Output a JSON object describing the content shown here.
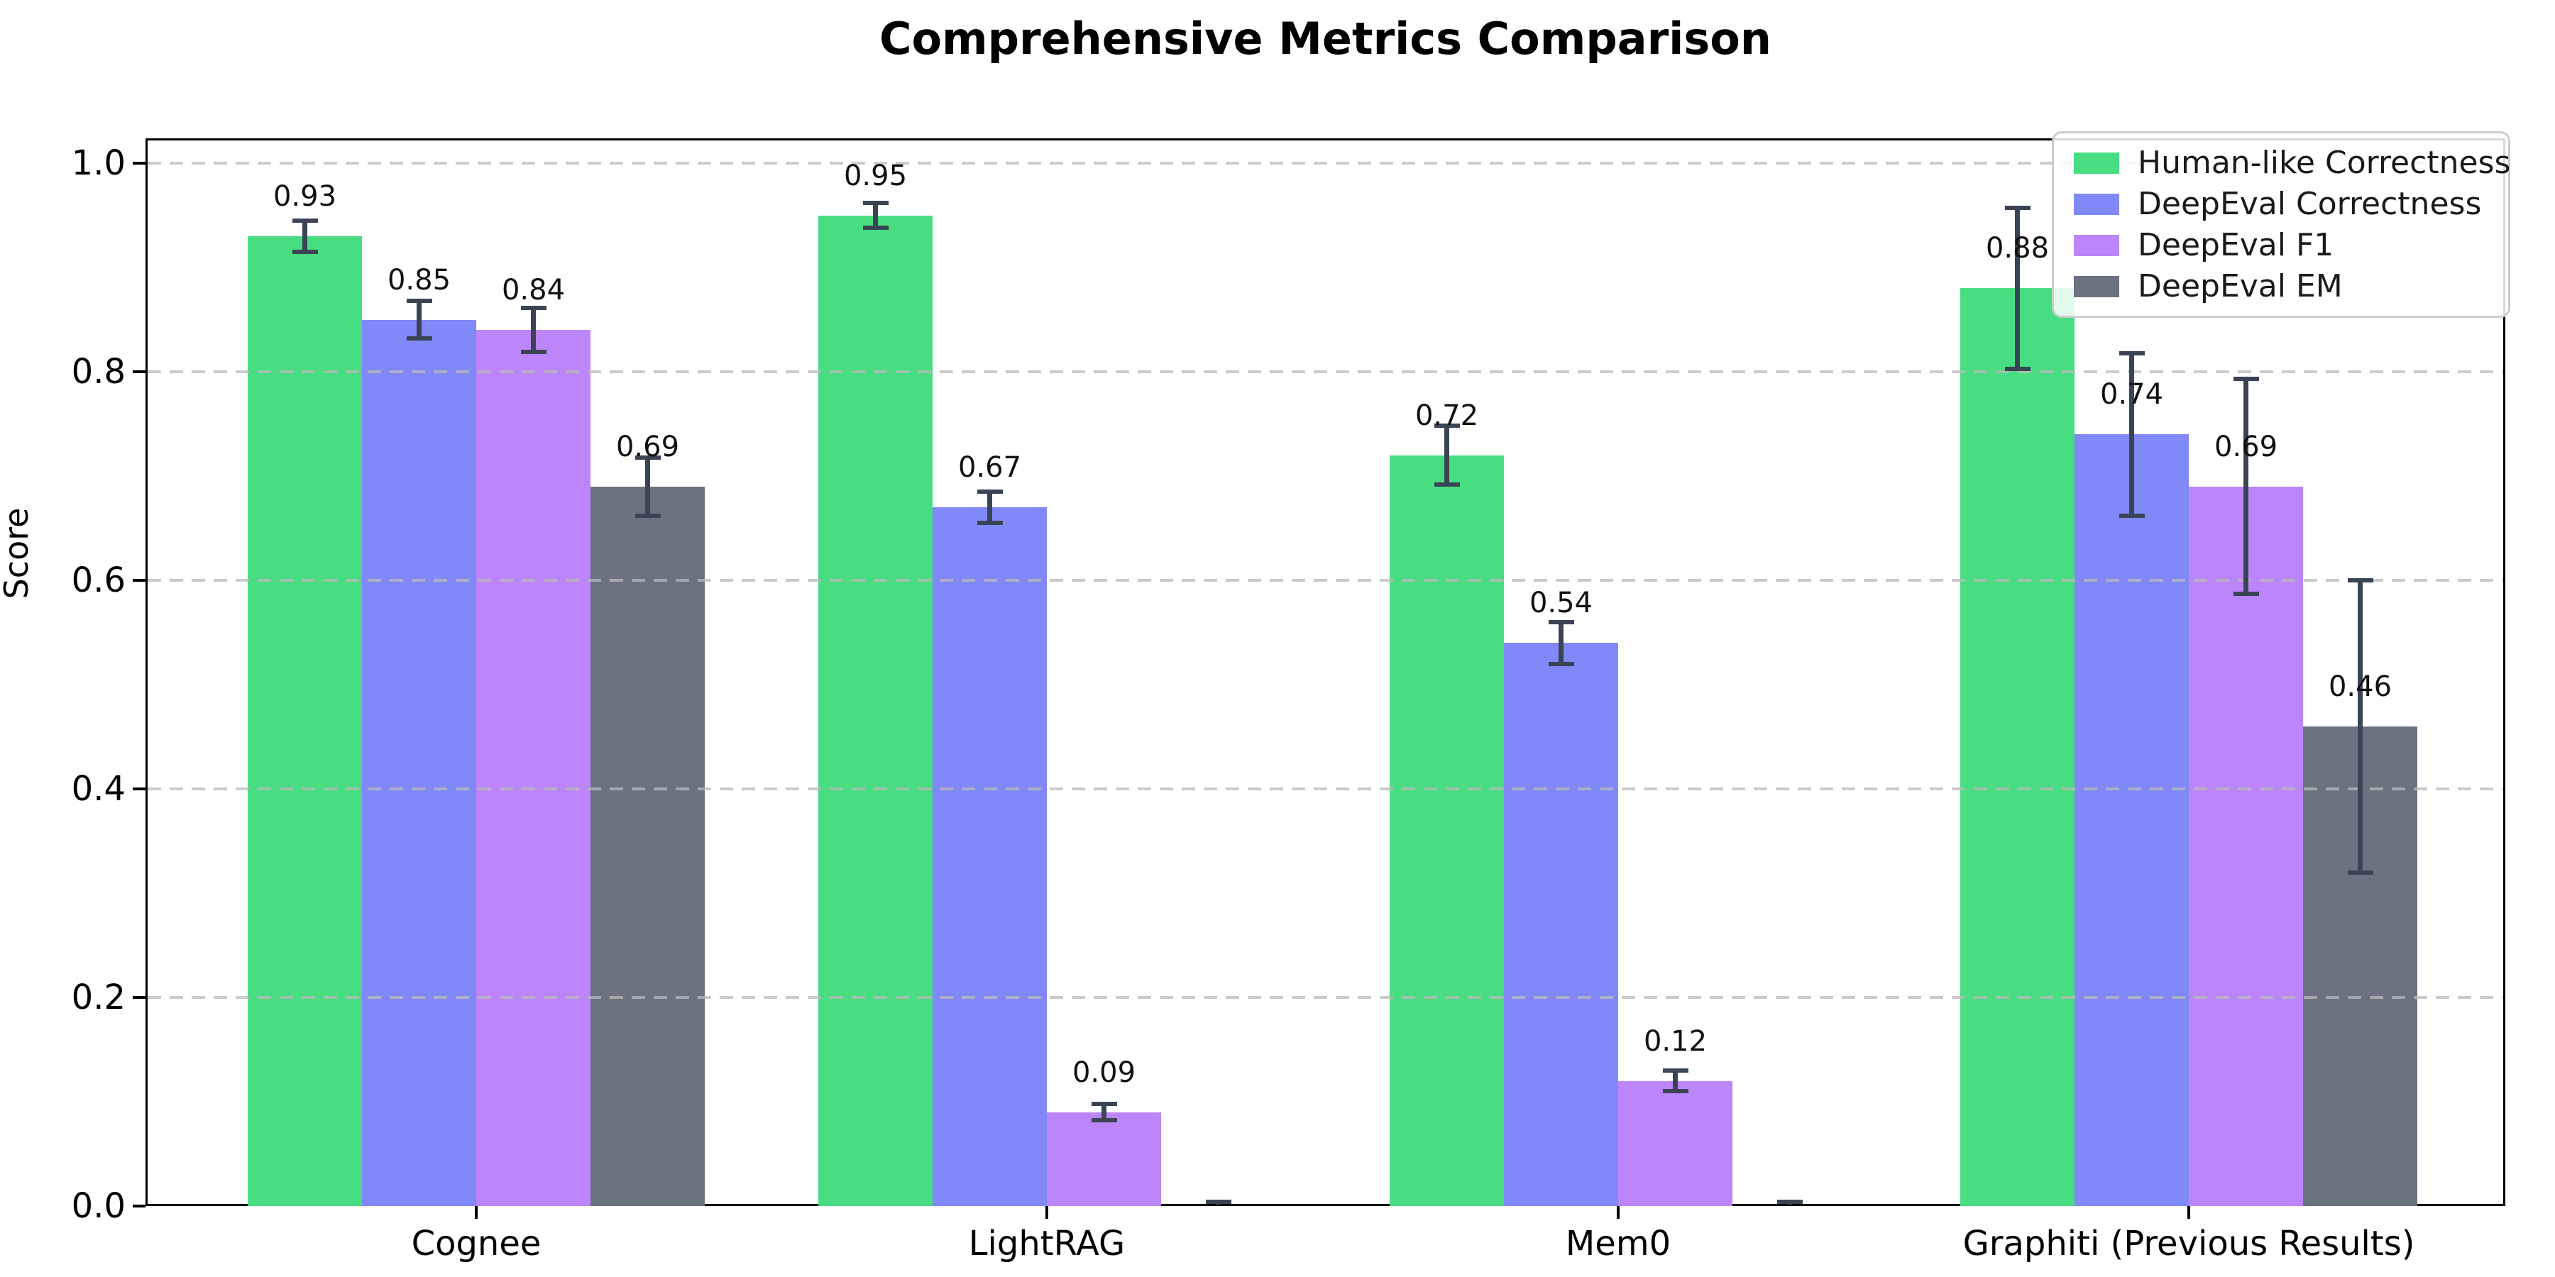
{
  "chart_data": {
    "type": "bar",
    "title": "Comprehensive Metrics Comparison",
    "xlabel": "",
    "ylabel": "Score",
    "categories": [
      "Cognee",
      "LightRAG",
      "Mem0",
      "Graphiti (Previous Results)"
    ],
    "y_ticks": [
      "0.0",
      "0.2",
      "0.4",
      "0.6",
      "0.8",
      "1.0"
    ],
    "ylim": [
      0.0,
      1.024
    ],
    "grid": {
      "axis": "y",
      "style": "dashed",
      "color": "#bababa",
      "values": [
        0.2,
        0.4,
        0.6,
        0.8,
        1.0
      ]
    },
    "legend": {
      "position": "upper right",
      "entries": [
        "Human-like Correctness",
        "DeepEval Correctness",
        "DeepEval F1",
        "DeepEval EM"
      ]
    },
    "error_bar_color": "#3a4454",
    "series": [
      {
        "name": "Human-like Correctness",
        "color": "#47dd80",
        "values": [
          0.93,
          0.95,
          0.72,
          0.88
        ],
        "errors": [
          0.015,
          0.012,
          0.028,
          0.077
        ],
        "labels": [
          "0.93",
          "0.95",
          "0.72",
          "0.88"
        ]
      },
      {
        "name": "DeepEval Correctness",
        "color": "#8188f8",
        "values": [
          0.85,
          0.67,
          0.54,
          0.74
        ],
        "errors": [
          0.018,
          0.015,
          0.02,
          0.078
        ],
        "labels": [
          "0.85",
          "0.67",
          "0.54",
          "0.74"
        ]
      },
      {
        "name": "DeepEval F1",
        "color": "#bc85fa",
        "values": [
          0.84,
          0.09,
          0.12,
          0.69
        ],
        "errors": [
          0.021,
          0.008,
          0.01,
          0.103
        ],
        "labels": [
          "0.84",
          "0.09",
          "0.12",
          "0.69"
        ]
      },
      {
        "name": "DeepEval EM",
        "color": "#6b7280",
        "values": [
          0.69,
          0.0,
          0.0,
          0.46
        ],
        "errors": [
          0.028,
          0.004,
          0.004,
          0.14
        ],
        "labels": [
          "0.69",
          null,
          null,
          "0.46"
        ]
      }
    ]
  }
}
